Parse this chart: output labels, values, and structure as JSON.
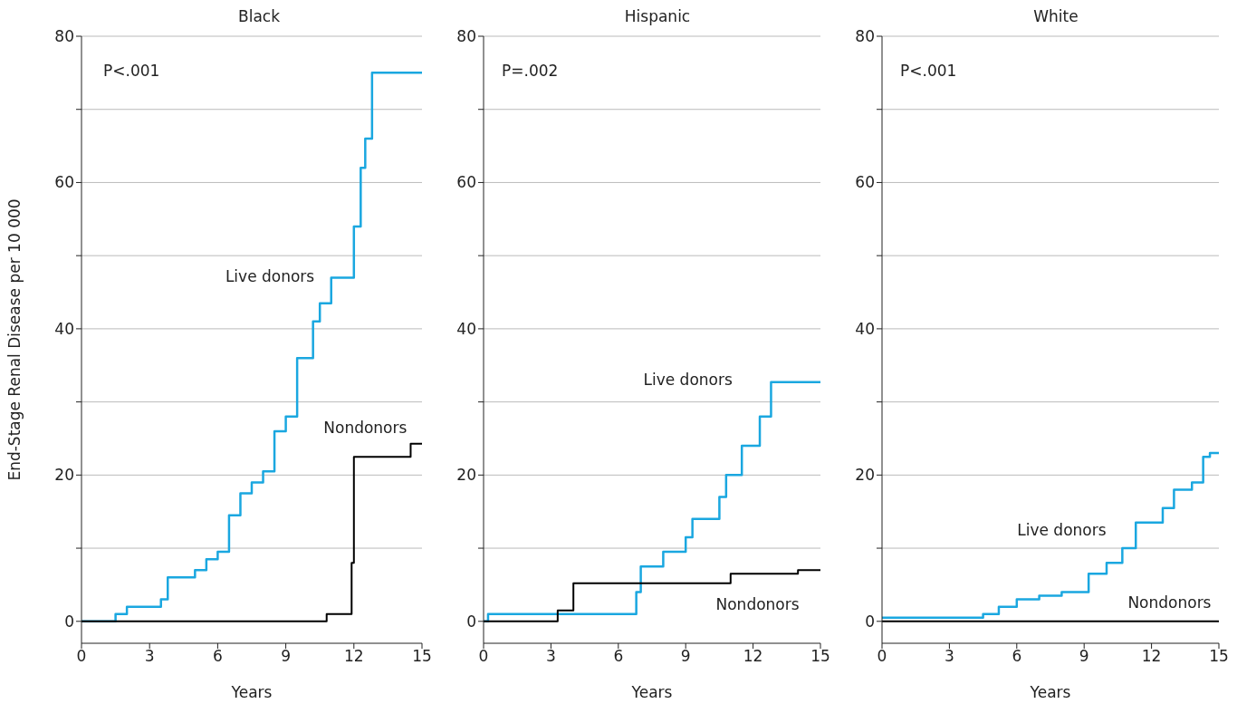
{
  "chart_data": [
    {
      "type": "step",
      "title": "Black",
      "xlabel": "Years",
      "ylabel": "End-Stage Renal Disease per 10 000",
      "xlim": [
        0,
        15
      ],
      "xticks": [
        0,
        3,
        6,
        9,
        12,
        15
      ],
      "ylim": [
        -3,
        80
      ],
      "yticks": [
        0,
        {
          "value": 10,
          "label": null
        },
        20,
        {
          "value": 30,
          "label": null
        },
        40,
        {
          "value": 50,
          "label": null
        },
        60,
        {
          "value": 70,
          "label": null
        },
        80
      ],
      "grid": "y",
      "series": [
        {
          "name": "Live donors",
          "color": "#1aa7e0",
          "x": [
            0,
            1.5,
            2,
            3.5,
            3.8,
            5,
            5.5,
            6,
            6.5,
            7,
            7.5,
            8,
            8.5,
            9,
            9.5,
            10.2,
            10.5,
            11,
            12,
            12.3,
            12.5,
            12.8,
            15
          ],
          "values": [
            0,
            1,
            2,
            3,
            6,
            7,
            8.5,
            9.5,
            14.5,
            17.5,
            19,
            20.5,
            26,
            28,
            36,
            41,
            43.5,
            47,
            54,
            62,
            66,
            75,
            75
          ]
        },
        {
          "name": "Nondonors",
          "color": "#000000",
          "x": [
            0,
            10.8,
            11.9,
            12,
            14.5,
            15
          ],
          "values": [
            0,
            1,
            8,
            22.5,
            24.3,
            24.3
          ]
        }
      ],
      "annotations": [
        "P<.001"
      ]
    },
    {
      "type": "step",
      "title": "Hispanic",
      "xlabel": "Years",
      "xlim": [
        0,
        15
      ],
      "xticks": [
        0,
        3,
        6,
        9,
        12,
        15
      ],
      "ylim": [
        -3,
        80
      ],
      "yticks": [
        0,
        {
          "value": 10,
          "label": null
        },
        20,
        {
          "value": 30,
          "label": null
        },
        40,
        {
          "value": 50,
          "label": null
        },
        60,
        {
          "value": 70,
          "label": null
        },
        80
      ],
      "grid": "y",
      "series": [
        {
          "name": "Live donors",
          "color": "#1aa7e0",
          "x": [
            0,
            0.2,
            6.5,
            6.8,
            7,
            8,
            9,
            9.3,
            10.5,
            10.8,
            11.5,
            12.3,
            12.8,
            15
          ],
          "values": [
            0,
            1,
            1,
            4,
            7.5,
            9.5,
            11.5,
            14,
            17,
            20,
            24,
            28,
            32.7,
            32.7
          ]
        },
        {
          "name": "Nondonors",
          "color": "#000000",
          "x": [
            0,
            3.3,
            4,
            11,
            14,
            15
          ],
          "values": [
            0,
            1.5,
            5.2,
            6.5,
            7,
            7
          ]
        }
      ],
      "annotations": [
        "P=.002"
      ]
    },
    {
      "type": "step",
      "title": "White",
      "xlabel": "Years",
      "xlim": [
        0,
        15
      ],
      "xticks": [
        0,
        3,
        6,
        9,
        12,
        15
      ],
      "ylim": [
        -3,
        80
      ],
      "yticks": [
        0,
        {
          "value": 10,
          "label": null
        },
        20,
        {
          "value": 30,
          "label": null
        },
        40,
        {
          "value": 50,
          "label": null
        },
        60,
        {
          "value": 70,
          "label": null
        },
        80
      ],
      "grid": "y",
      "series": [
        {
          "name": "Live donors",
          "color": "#1aa7e0",
          "x": [
            0,
            4.5,
            5.2,
            6,
            7,
            8,
            9.2,
            10,
            10.7,
            11.3,
            12.5,
            13,
            13.8,
            14.3,
            14.6,
            15
          ],
          "values": [
            0.5,
            1,
            2,
            3,
            3.5,
            4,
            6.5,
            8,
            10,
            13.5,
            15.5,
            18,
            19,
            22.5,
            23,
            23
          ]
        },
        {
          "name": "Nondonors",
          "color": "#000000",
          "x": [
            0,
            15
          ],
          "values": [
            0,
            0
          ]
        }
      ],
      "annotations": [
        "P<.001"
      ]
    }
  ]
}
